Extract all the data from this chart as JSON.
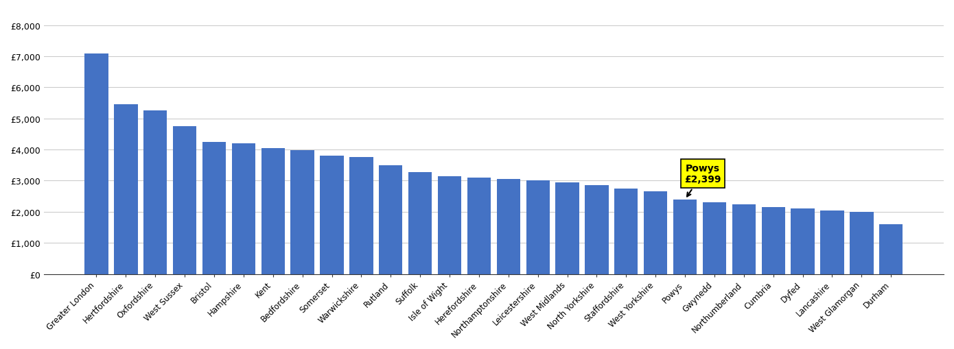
{
  "categories": [
    "Greater London",
    "Hertfordshire",
    "Oxfordshire",
    "West Sussex",
    "Bristol",
    "Hampshire",
    "Kent",
    "Bedfordshire",
    "Somerset",
    "Warwickshire",
    "Rutland",
    "Suffolk",
    "Isle of Wight",
    "Herefordshire",
    "Northamptonshire",
    "Leicestershire",
    "West Midlands",
    "North Yorkshire",
    "Staffordshire",
    "West Yorkshire",
    "Powys",
    "Gwynedd",
    "Northumberland",
    "Cumbria",
    "Dyfed",
    "Lancashire",
    "West Glamorgan",
    "Durham"
  ],
  "values": [
    7100,
    5450,
    5250,
    4750,
    4250,
    4200,
    4050,
    3980,
    3800,
    3750,
    3500,
    3280,
    3150,
    3100,
    3050,
    3000,
    2950,
    2850,
    2750,
    2650,
    2399,
    2300,
    2250,
    2150,
    2100,
    2050,
    2000,
    1600
  ],
  "highlight_index": 20,
  "highlight_label": "Powys\n£2,399",
  "bar_color": "#4472C4",
  "ylabel_ticks": [
    "£0",
    "£1,000",
    "£2,000",
    "£3,000",
    "£4,000",
    "£5,000",
    "£6,000",
    "£7,000",
    "£8,000"
  ],
  "ylim": [
    0,
    8500
  ],
  "yticks": [
    0,
    1000,
    2000,
    3000,
    4000,
    5000,
    6000,
    7000,
    8000
  ],
  "background_color": "#ffffff",
  "grid_color": "#cccccc"
}
